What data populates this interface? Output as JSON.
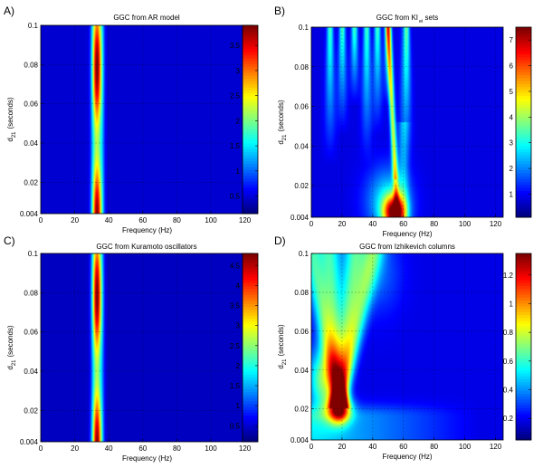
{
  "chart_data": [
    {
      "type": "heatmap",
      "panel_label": "A)",
      "title": "GGC from AR model",
      "xlabel": "Frequency (Hz)",
      "ylabel": "d",
      "ylabel_sub": "21",
      "ylabel_unit": "(seconds)",
      "xlim": [
        0,
        125
      ],
      "ylim": [
        0.004,
        0.1
      ],
      "x_ticks": [
        0,
        20,
        40,
        60,
        80,
        100,
        120
      ],
      "y_ticks": [
        "0.004",
        "0.02",
        "0.04",
        "0.06",
        "0.08",
        "0.1"
      ],
      "y_tick_values": [
        0.004,
        0.02,
        0.04,
        0.06,
        0.08,
        0.1
      ],
      "colorbar_ticks": [
        0.5,
        1,
        1.5,
        2,
        2.5,
        3,
        3.5
      ],
      "colorbar_range": [
        0.15,
        3.9
      ],
      "background_value": 0.45,
      "features": [
        {
          "kind": "peak_ridge",
          "freq": 33,
          "width_hz": 1.8,
          "peak": 3.9,
          "value_range": [
            2.4,
            3.9
          ]
        },
        {
          "kind": "secondary_ridge",
          "freq": 36,
          "value": 0.9
        }
      ]
    },
    {
      "type": "heatmap",
      "panel_label": "B)",
      "title": "GGC from KI",
      "title_sub": "e",
      "title_sub2": "i",
      "title_suffix": " sets",
      "xlabel": "Frequency (Hz)",
      "ylabel": "d",
      "ylabel_sub": "21",
      "ylabel_unit": "(seconds)",
      "xlim": [
        0,
        125
      ],
      "ylim": [
        0.004,
        0.1
      ],
      "x_ticks": [
        0,
        20,
        40,
        60,
        80,
        100,
        120
      ],
      "y_ticks": [
        "0.004",
        "0.02",
        "0.04",
        "0.06",
        "0.08",
        "0.1"
      ],
      "y_tick_values": [
        0.004,
        0.02,
        0.04,
        0.06,
        0.08,
        0.1
      ],
      "colorbar_ticks": [
        1,
        2,
        3,
        4,
        5,
        6,
        7
      ],
      "colorbar_range": [
        0.1,
        7.5
      ],
      "background_value": 0.8,
      "features": [
        {
          "kind": "curved_ridge",
          "freq_at_bottom": 56,
          "freq_at_top": 50,
          "peak": 5.5
        },
        {
          "kind": "hot_spot",
          "freq": 54,
          "d21": 0.006,
          "value": 7.2
        },
        {
          "kind": "fan_lobes",
          "frequencies": [
            12,
            20,
            28,
            36,
            43,
            50,
            62
          ],
          "value": 3.5
        }
      ]
    },
    {
      "type": "heatmap",
      "panel_label": "C)",
      "title": "GGC from Kuramoto oscillators",
      "xlabel": "Frequency (Hz)",
      "ylabel": "d",
      "ylabel_sub": "21",
      "ylabel_unit": "(seconds)",
      "xlim": [
        0,
        125
      ],
      "ylim": [
        0.004,
        0.1
      ],
      "x_ticks": [
        0,
        20,
        40,
        60,
        80,
        100,
        120
      ],
      "y_ticks": [
        "0.004",
        "0.02",
        "0.04",
        "0.06",
        "0.08",
        "0.1"
      ],
      "y_tick_values": [
        0.004,
        0.02,
        0.04,
        0.06,
        0.08,
        0.1
      ],
      "colorbar_ticks": [
        0.5,
        1,
        1.5,
        2,
        2.5,
        3,
        3.5,
        4,
        4.5
      ],
      "colorbar_range": [
        0.1,
        4.8
      ],
      "background_value": 0.4,
      "features": [
        {
          "kind": "peak_ridge",
          "freq": 33,
          "width_hz": 1.8,
          "peak": 4.8,
          "value_range": [
            2.8,
            4.8
          ]
        },
        {
          "kind": "secondary_ridge",
          "freq": 36,
          "value": 0.9
        }
      ]
    },
    {
      "type": "heatmap",
      "panel_label": "D)",
      "title": "GGC from Izhikevich columns",
      "xlabel": "Frequency (Hz)",
      "ylabel": "d",
      "ylabel_sub": "21",
      "ylabel_unit": "(seconds)",
      "xlim": [
        0,
        125
      ],
      "ylim": [
        0.004,
        0.1
      ],
      "x_ticks": [
        0,
        20,
        40,
        60,
        80,
        100,
        120
      ],
      "y_ticks": [
        "0.004",
        "0.02",
        "0.04",
        "0.06",
        "0.08",
        "0.1"
      ],
      "y_tick_values": [
        0.004,
        0.02,
        0.04,
        0.06,
        0.08,
        0.1
      ],
      "colorbar_ticks": [
        0.2,
        0.4,
        0.6,
        0.8,
        1,
        1.2
      ],
      "colorbar_range": [
        0.05,
        1.35
      ],
      "background_value": 0.18,
      "features": [
        {
          "kind": "hot_spot",
          "freq": 18,
          "d21": 0.02,
          "value": 1.3
        },
        {
          "kind": "diverging_branches",
          "origin_freq": 18,
          "top_freqs": [
            0,
            12,
            28,
            40
          ],
          "value": 0.6
        },
        {
          "kind": "low_delay_band",
          "d21_max": 0.015,
          "freq_max": 110,
          "value": 0.5
        }
      ]
    }
  ]
}
